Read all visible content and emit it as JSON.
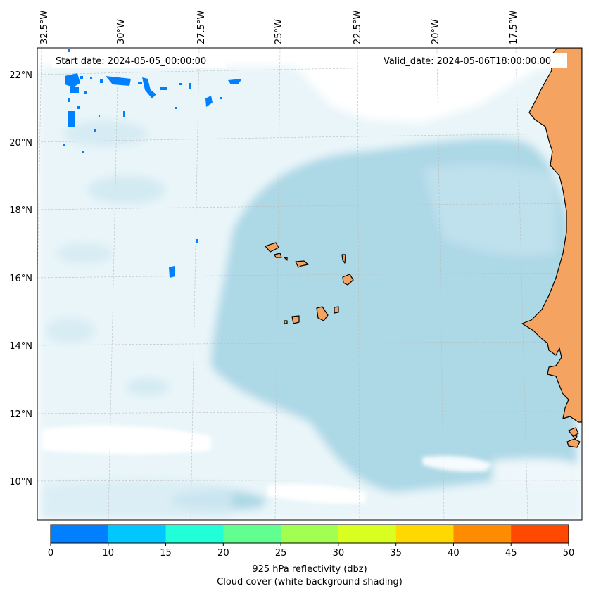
{
  "header": {
    "start_label": "Start date: 2024-05-05_00:00:00",
    "valid_label": "Valid_date: 2024-05-06T18:00:00.00"
  },
  "axes": {
    "lon_labels": [
      "32.5°W",
      "30°W",
      "27.5°W",
      "25°W",
      "22.5°W",
      "20°W",
      "17.5°W"
    ],
    "lat_labels": [
      "22°N",
      "20°N",
      "18°N",
      "16°N",
      "14°N",
      "12°N",
      "10°N"
    ]
  },
  "colorbar": {
    "tick_labels": [
      "0",
      "10",
      "15",
      "20",
      "25",
      "30",
      "35",
      "40",
      "45",
      "50"
    ],
    "colors": [
      "#0080ff",
      "#00c8ff",
      "#20ffd8",
      "#60ff90",
      "#a0ff50",
      "#d8ff20",
      "#ffd800",
      "#ff8c00",
      "#ff4800"
    ],
    "label_line1": "925 hPa reflectivity (dbz)",
    "label_line2": "Cloud cover (white background shading)"
  },
  "colors": {
    "land": "#f4a460",
    "cloud": "#add8e6",
    "frame": "#000000"
  }
}
